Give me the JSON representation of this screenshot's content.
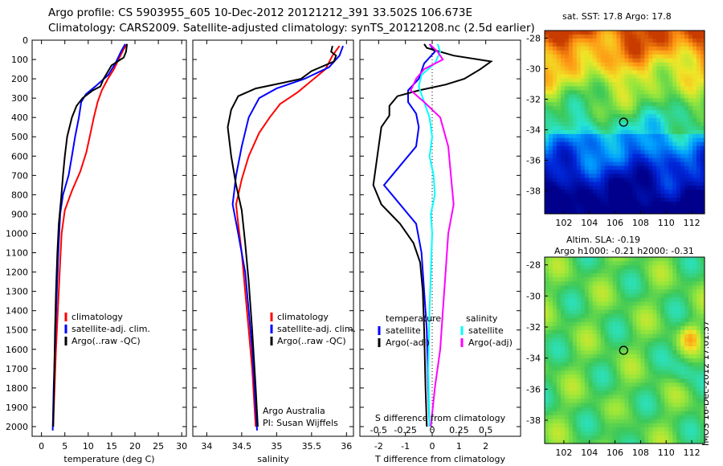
{
  "header": {
    "line1": "Argo profile: CS 5903955_605 10-Dec-2012 20121212_391 33.502S 106.673E",
    "line2": "Climatology: CARS2009. Satellite-adjusted climatology: synTS_20121208.nc (2.5d earlier)"
  },
  "colors": {
    "climatology": "#ff0000",
    "satellite": "#0000ff",
    "argo": "#000000",
    "sat_salinity": "#00ffff",
    "argo_salinity": "#ff00ff"
  },
  "chart_data": [
    {
      "type": "line",
      "id": "temperature",
      "xlabel": "temperature (deg C)",
      "ylabel": "",
      "xlim": [
        -2,
        31
      ],
      "ylim": [
        2050,
        0
      ],
      "xticks": [
        0,
        5,
        10,
        15,
        20,
        25,
        30
      ],
      "yticks": [
        0,
        100,
        200,
        300,
        400,
        500,
        600,
        700,
        800,
        900,
        1000,
        1100,
        1200,
        1300,
        1400,
        1500,
        1600,
        1700,
        1800,
        1900,
        2000
      ],
      "legend": [
        "climatology",
        "satellite-adj. clim.",
        "Argo(..raw -QC)"
      ],
      "series": [
        {
          "name": "climatology",
          "color": "#ff0000",
          "points": [
            [
              18.3,
              20
            ],
            [
              17.5,
              50
            ],
            [
              16.5,
              100
            ],
            [
              15.5,
              150
            ],
            [
              14.2,
              200
            ],
            [
              12.9,
              260
            ],
            [
              12.0,
              320
            ],
            [
              11.2,
              400
            ],
            [
              10.5,
              480
            ],
            [
              9.6,
              580
            ],
            [
              8.3,
              680
            ],
            [
              6.5,
              780
            ],
            [
              5.0,
              880
            ],
            [
              4.3,
              1000
            ],
            [
              3.9,
              1200
            ],
            [
              3.5,
              1400
            ],
            [
              3.1,
              1600
            ],
            [
              2.8,
              1800
            ],
            [
              2.5,
              2000
            ]
          ]
        },
        {
          "name": "satellite-adj. clim.",
          "color": "#0000ff",
          "points": [
            [
              17.9,
              20
            ],
            [
              17.0,
              60
            ],
            [
              15.8,
              120
            ],
            [
              14.3,
              180
            ],
            [
              11.5,
              240
            ],
            [
              9.5,
              280
            ],
            [
              8.5,
              320
            ],
            [
              8.0,
              400
            ],
            [
              7.2,
              500
            ],
            [
              6.5,
              600
            ],
            [
              5.8,
              700
            ],
            [
              4.6,
              800
            ],
            [
              4.0,
              900
            ],
            [
              3.6,
              1100
            ],
            [
              3.3,
              1300
            ],
            [
              3.0,
              1500
            ],
            [
              2.6,
              1800
            ],
            [
              2.4,
              2020
            ]
          ]
        },
        {
          "name": "Argo(..raw -QC)",
          "color": "#000000",
          "points": [
            [
              18.3,
              20
            ],
            [
              18.1,
              60
            ],
            [
              17.6,
              90
            ],
            [
              15.0,
              130
            ],
            [
              13.3,
              200
            ],
            [
              12.6,
              240
            ],
            [
              11.0,
              260
            ],
            [
              8.8,
              300
            ],
            [
              7.5,
              340
            ],
            [
              6.5,
              400
            ],
            [
              5.5,
              500
            ],
            [
              5.0,
              600
            ],
            [
              4.6,
              700
            ],
            [
              4.2,
              820
            ],
            [
              3.7,
              950
            ],
            [
              3.4,
              1100
            ],
            [
              3.1,
              1300
            ],
            [
              2.9,
              1500
            ],
            [
              2.7,
              1800
            ],
            [
              2.5,
              2000
            ]
          ]
        }
      ]
    },
    {
      "type": "line",
      "id": "salinity",
      "xlabel": "salinity",
      "ylabel": "",
      "xlim": [
        33.8,
        36.1
      ],
      "ylim": [
        2050,
        0
      ],
      "xticks": [
        34,
        34.5,
        35,
        35.5,
        36
      ],
      "legend": [
        "climatology",
        "satellite-adj. clim.",
        "Argo(..raw -QC)"
      ],
      "annotation": [
        "Argo Australia",
        "PI: Susan Wijffels"
      ],
      "series": [
        {
          "name": "climatology",
          "color": "#ff0000",
          "points": [
            [
              35.9,
              30
            ],
            [
              35.8,
              80
            ],
            [
              35.7,
              150
            ],
            [
              35.5,
              210
            ],
            [
              35.3,
              270
            ],
            [
              35.05,
              330
            ],
            [
              34.9,
              400
            ],
            [
              34.75,
              480
            ],
            [
              34.6,
              600
            ],
            [
              34.5,
              720
            ],
            [
              34.42,
              850
            ],
            [
              34.45,
              950
            ],
            [
              34.5,
              1100
            ],
            [
              34.55,
              1300
            ],
            [
              34.6,
              1500
            ],
            [
              34.65,
              1700
            ],
            [
              34.7,
              2000
            ]
          ]
        },
        {
          "name": "satellite-adj. clim.",
          "color": "#0000ff",
          "points": [
            [
              35.95,
              30
            ],
            [
              35.9,
              80
            ],
            [
              35.75,
              140
            ],
            [
              35.4,
              200
            ],
            [
              35.0,
              250
            ],
            [
              34.75,
              300
            ],
            [
              34.6,
              400
            ],
            [
              34.5,
              550
            ],
            [
              34.42,
              700
            ],
            [
              34.37,
              850
            ],
            [
              34.45,
              1000
            ],
            [
              34.55,
              1200
            ],
            [
              34.6,
              1400
            ],
            [
              34.65,
              1600
            ],
            [
              34.72,
              2020
            ]
          ]
        },
        {
          "name": "Argo(..raw -QC)",
          "color": "#000000",
          "points": [
            [
              35.8,
              30
            ],
            [
              35.78,
              60
            ],
            [
              35.85,
              80
            ],
            [
              35.82,
              110
            ],
            [
              35.5,
              160
            ],
            [
              35.35,
              200
            ],
            [
              35.1,
              220
            ],
            [
              34.7,
              250
            ],
            [
              34.45,
              290
            ],
            [
              34.35,
              360
            ],
            [
              34.3,
              450
            ],
            [
              34.35,
              600
            ],
            [
              34.42,
              750
            ],
            [
              34.5,
              880
            ],
            [
              34.55,
              1050
            ],
            [
              34.6,
              1250
            ],
            [
              34.65,
              1500
            ],
            [
              34.7,
              1800
            ],
            [
              34.73,
              2000
            ]
          ]
        }
      ]
    },
    {
      "type": "line",
      "id": "difference",
      "xlabel": "T difference from climatology",
      "xlabel2": "S difference from climatology",
      "ylabel": "",
      "xlim": [
        -2.7,
        3.3
      ],
      "ylim": [
        2050,
        0
      ],
      "xticks": [
        -2,
        -1,
        0,
        1,
        2
      ],
      "xticks2_labels": [
        "-0.5",
        "-0.25",
        "0",
        "0.25",
        "0.5"
      ],
      "xticks2_values": [
        -2,
        -1,
        0,
        1,
        2
      ],
      "legend_titles": [
        "temperature",
        "salinity"
      ],
      "legend": [
        "satellite",
        "Argo(-adj)",
        "satellite",
        "Argo(-adj)"
      ],
      "series": [
        {
          "name": "T satellite",
          "color": "#0000ff",
          "points": [
            [
              -0.1,
              20
            ],
            [
              0.1,
              60
            ],
            [
              -0.3,
              120
            ],
            [
              -0.5,
              200
            ],
            [
              -0.9,
              260
            ],
            [
              -0.9,
              320
            ],
            [
              -0.6,
              380
            ],
            [
              -0.5,
              450
            ],
            [
              -0.6,
              550
            ],
            [
              -1.2,
              650
            ],
            [
              -1.8,
              750
            ],
            [
              -1.2,
              850
            ],
            [
              -0.6,
              950
            ],
            [
              -0.4,
              1100
            ],
            [
              -0.3,
              1300
            ],
            [
              -0.2,
              1500
            ],
            [
              -0.15,
              1800
            ],
            [
              -0.1,
              2000
            ]
          ]
        },
        {
          "name": "T Argo(-adj)",
          "color": "#000000",
          "points": [
            [
              -0.3,
              20
            ],
            [
              -0.2,
              40
            ],
            [
              0.8,
              80
            ],
            [
              2.2,
              110
            ],
            [
              1.8,
              150
            ],
            [
              1.2,
              200
            ],
            [
              0.5,
              230
            ],
            [
              -0.5,
              260
            ],
            [
              -1.3,
              290
            ],
            [
              -1.6,
              340
            ],
            [
              -1.6,
              390
            ],
            [
              -1.9,
              450
            ],
            [
              -2.2,
              750
            ],
            [
              -1.9,
              850
            ],
            [
              -1.2,
              950
            ],
            [
              -0.7,
              1050
            ],
            [
              -0.45,
              1150
            ],
            [
              -0.35,
              1300
            ],
            [
              -0.3,
              1500
            ],
            [
              -0.25,
              1800
            ],
            [
              -0.2,
              2000
            ]
          ]
        },
        {
          "name": "S satellite",
          "color": "#00ffff",
          "points": [
            [
              0.2,
              20
            ],
            [
              0.3,
              60
            ],
            [
              0.1,
              120
            ],
            [
              -0.4,
              180
            ],
            [
              -0.5,
              240
            ],
            [
              -0.3,
              320
            ],
            [
              -0.1,
              400
            ],
            [
              0.0,
              500
            ],
            [
              -0.1,
              600
            ],
            [
              0.05,
              700
            ],
            [
              0.1,
              800
            ],
            [
              -0.05,
              900
            ],
            [
              0.0,
              1000
            ],
            [
              -0.05,
              1200
            ],
            [
              -0.1,
              1400
            ],
            [
              -0.15,
              1700
            ],
            [
              -0.1,
              2000
            ]
          ]
        },
        {
          "name": "S Argo(-adj)",
          "color": "#ff00ff",
          "points": [
            [
              -0.1,
              20
            ],
            [
              0.2,
              60
            ],
            [
              0.4,
              100
            ],
            [
              -0.3,
              150
            ],
            [
              -0.6,
              200
            ],
            [
              -0.8,
              260
            ],
            [
              -0.3,
              320
            ],
            [
              0.3,
              400
            ],
            [
              0.6,
              550
            ],
            [
              0.7,
              700
            ],
            [
              0.8,
              850
            ],
            [
              0.6,
              1000
            ],
            [
              0.5,
              1200
            ],
            [
              0.4,
              1400
            ],
            [
              0.3,
              1600
            ],
            [
              0.1,
              1800
            ],
            [
              -0.05,
              2000
            ]
          ]
        }
      ]
    },
    {
      "type": "heatmap",
      "id": "sst",
      "title": "sat. SST: 17.8  Argo: 17.8",
      "xlim": [
        100.5,
        113
      ],
      "ylim": [
        -39.5,
        -27.5
      ],
      "xticks": [
        102,
        104,
        106,
        108,
        110,
        112
      ],
      "yticks": [
        -28,
        -30,
        -32,
        -34,
        -36,
        -38
      ],
      "marker": [
        106.673,
        -33.502
      ]
    },
    {
      "type": "heatmap",
      "id": "sla",
      "title": "Altim. SLA: -0.19",
      "subtitle": "Argo h1000: -0.21  h2000: -0.31",
      "xlim": [
        100.5,
        113
      ],
      "ylim": [
        -39.5,
        -27.5
      ],
      "xticks": [
        102,
        104,
        106,
        108,
        110,
        112
      ],
      "yticks": [
        -28,
        -30,
        -32,
        -34,
        -36,
        -38
      ],
      "marker": [
        106.673,
        -33.502
      ]
    }
  ],
  "credit": "IMOS 16-Dec-2012 17:01:37"
}
